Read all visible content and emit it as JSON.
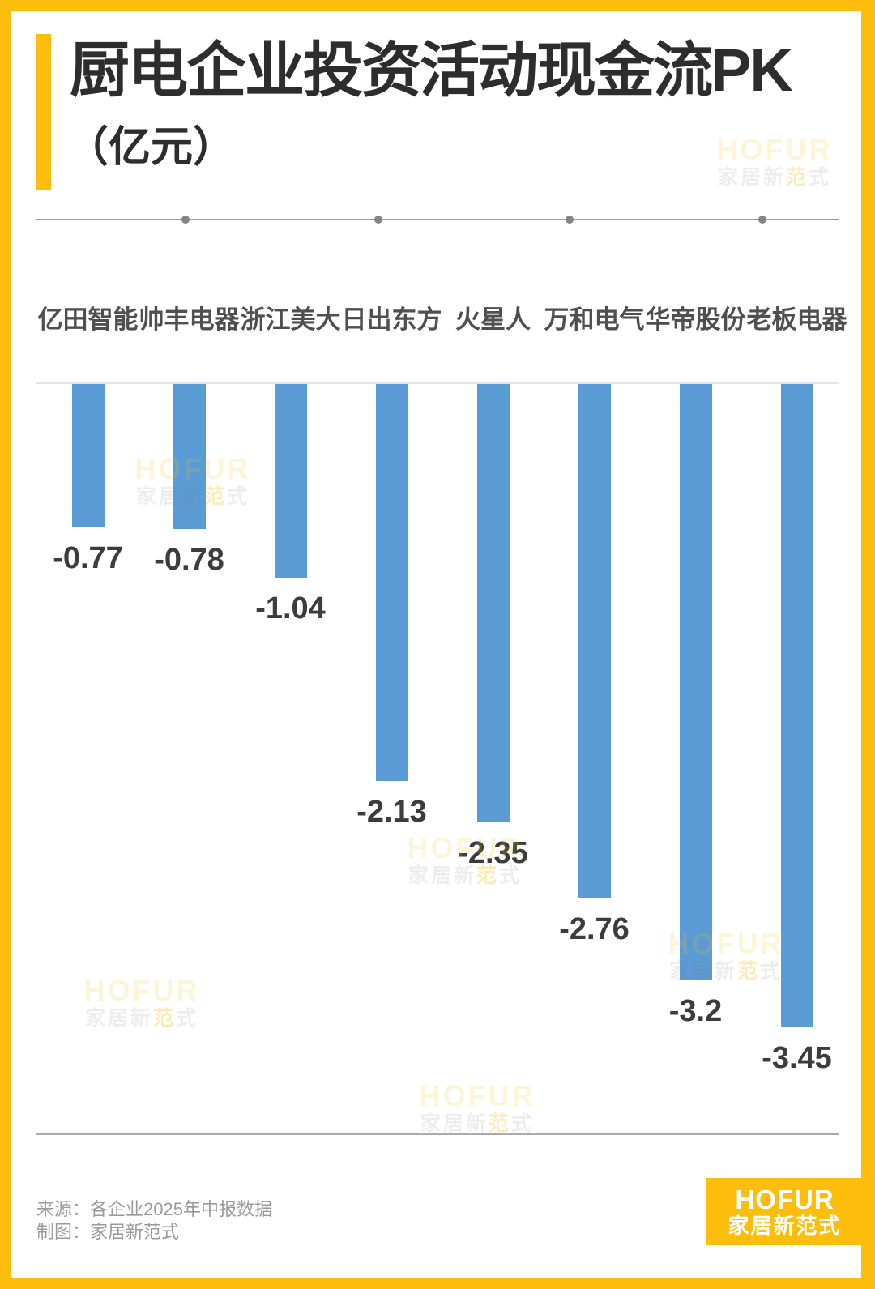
{
  "header": {
    "title": "厨电企业投资活动现金流PK",
    "subtitle": "（亿元）"
  },
  "chart_data": {
    "type": "bar",
    "title": "厨电企业投资活动现金流PK",
    "unit": "亿元",
    "categories": [
      "亿田智能",
      "帅丰电器",
      "浙江美大",
      "日出东方",
      "火星人",
      "万和电气",
      "华帝股份",
      "老板电器"
    ],
    "values": [
      -0.77,
      -0.78,
      -1.04,
      -2.13,
      -2.35,
      -2.76,
      -3.2,
      -3.45
    ],
    "value_labels": [
      "-0.77",
      "-0.78",
      "-1.04",
      "-2.13",
      "-2.35",
      "-2.76",
      "-3.2",
      "-3.45"
    ],
    "bar_color": "#5B9BD5",
    "ylim": [
      -3.6,
      0
    ],
    "grid": false,
    "legend": false,
    "value_label_position": "below-bar",
    "baseline": "zero-line-at-top"
  },
  "watermark": {
    "brand": "HOFUR",
    "cn_prefix": "家居新",
    "cn_highlight": "范",
    "cn_suffix": "式"
  },
  "footer": {
    "source": "来源：各企业2025年中报数据",
    "credit": "制图：家居新范式"
  },
  "logo": {
    "brand": "HOFUR",
    "brand_cn": "家居新范式"
  },
  "colors": {
    "accent_yellow": "#FCBE0A",
    "bar_blue": "#5B9BD5",
    "title_text": "#2D2D2D",
    "category_text": "#4F4F4F",
    "value_text": "#3C3C3C",
    "footer_text": "#9A9A9A"
  }
}
